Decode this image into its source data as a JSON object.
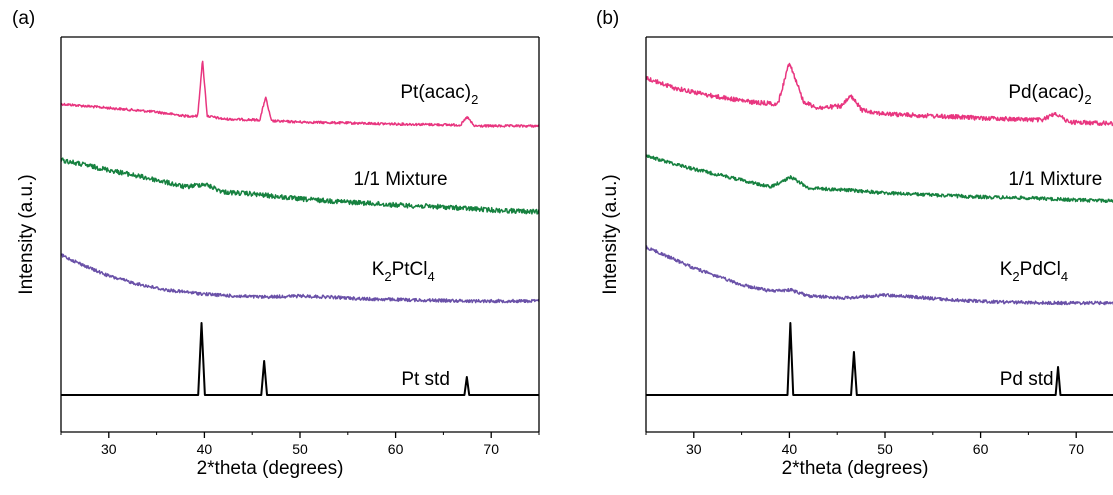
{
  "chart_data": [
    {
      "type": "line",
      "panel_label": "(a)",
      "xlabel": "2*theta (degrees)",
      "ylabel": "Intensity (a.u.)",
      "xlim": [
        25,
        75
      ],
      "xticks": [
        "30",
        "40",
        "50",
        "60",
        "70"
      ],
      "y_ticks_shown": false,
      "grid": false,
      "series": [
        {
          "name_parts": [
            {
              "t": "Pt(acac)"
            },
            {
              "t": "2",
              "sub": true
            }
          ],
          "color": "#e8357f",
          "noise": 1.2,
          "points": [
            [
              25,
              104
            ],
            [
              30,
              108
            ],
            [
              35,
              112
            ],
            [
              38,
              116
            ],
            [
              39.3,
              116
            ],
            [
              39.8,
              60
            ],
            [
              40.3,
              116
            ],
            [
              42,
              119
            ],
            [
              45.8,
              120
            ],
            [
              46.4,
              97
            ],
            [
              47,
              121
            ],
            [
              50,
              122
            ],
            [
              55,
              123
            ],
            [
              60,
              124
            ],
            [
              66.8,
              125
            ],
            [
              67.5,
              117
            ],
            [
              68.2,
              126
            ],
            [
              75,
              126
            ]
          ]
        },
        {
          "name_parts": [
            {
              "t": "1/1 Mixture"
            }
          ],
          "color": "#16813f",
          "noise": 2.4,
          "points": [
            [
              25,
              160
            ],
            [
              30,
              170
            ],
            [
              35,
              180
            ],
            [
              38,
              187
            ],
            [
              40,
              184
            ],
            [
              42,
              192
            ],
            [
              45,
              194
            ],
            [
              50,
              199
            ],
            [
              55,
              202
            ],
            [
              60,
              205
            ],
            [
              65,
              207
            ],
            [
              70,
              210
            ],
            [
              75,
              212
            ]
          ]
        },
        {
          "name_parts": [
            {
              "t": "K"
            },
            {
              "t": "2",
              "sub": true
            },
            {
              "t": "PtCl"
            },
            {
              "t": "4",
              "sub": true
            }
          ],
          "color": "#6a51a8",
          "noise": 1.6,
          "points": [
            [
              25,
              255
            ],
            [
              28,
              268
            ],
            [
              30,
              276
            ],
            [
              33,
              284
            ],
            [
              36,
              290
            ],
            [
              40,
              294
            ],
            [
              43,
              296
            ],
            [
              46,
              297
            ],
            [
              50,
              296
            ],
            [
              53,
              297
            ],
            [
              57,
              299
            ],
            [
              62,
              300
            ],
            [
              68,
              301
            ],
            [
              75,
              301
            ]
          ]
        },
        {
          "name_parts": [
            {
              "t": "Pt std"
            }
          ],
          "color": "#000000",
          "noise": 0,
          "points": [
            [
              25,
              395
            ],
            [
              39.35,
              395
            ],
            [
              39.7,
              323
            ],
            [
              40.05,
              395
            ],
            [
              45.95,
              395
            ],
            [
              46.25,
              361
            ],
            [
              46.55,
              395
            ],
            [
              67.2,
              395
            ],
            [
              67.45,
              377
            ],
            [
              67.7,
              395
            ],
            [
              75,
              395
            ]
          ]
        }
      ],
      "labels": [
        {
          "series": 0,
          "x": 60.5,
          "y": 98
        },
        {
          "series": 1,
          "x": 55.6,
          "y": 185
        },
        {
          "series": 2,
          "x": 57.5,
          "y": 275
        },
        {
          "series": 3,
          "x": 60.6,
          "y": 385
        }
      ]
    },
    {
      "type": "line",
      "panel_label": "(b)",
      "xlabel": "2*theta (degrees)",
      "ylabel": "Intensity (a.u.)",
      "xlim": [
        25,
        75
      ],
      "xticks": [
        "30",
        "40",
        "50",
        "60",
        "70"
      ],
      "y_ticks_shown": false,
      "grid": false,
      "series": [
        {
          "name_parts": [
            {
              "t": "Pd(acac)"
            },
            {
              "t": "2",
              "sub": true
            }
          ],
          "color": "#e8357f",
          "noise": 2.2,
          "points": [
            [
              25,
              78
            ],
            [
              28,
              88
            ],
            [
              32,
              96
            ],
            [
              36,
              102
            ],
            [
              38.8,
              104
            ],
            [
              40,
              62
            ],
            [
              41.5,
              102
            ],
            [
              43,
              108
            ],
            [
              45.5,
              106
            ],
            [
              46.4,
              96
            ],
            [
              47.6,
              110
            ],
            [
              50,
              114
            ],
            [
              55,
              116
            ],
            [
              60,
              118
            ],
            [
              66.5,
              120
            ],
            [
              67.8,
              113
            ],
            [
              69.2,
              122
            ],
            [
              75,
              124
            ]
          ]
        },
        {
          "name_parts": [
            {
              "t": "1/1 Mixture"
            }
          ],
          "color": "#16813f",
          "noise": 1.7,
          "points": [
            [
              25,
              156
            ],
            [
              30,
              169
            ],
            [
              35,
              180
            ],
            [
              38,
              187
            ],
            [
              40.2,
              177
            ],
            [
              42,
              188
            ],
            [
              46,
              190
            ],
            [
              50,
              193
            ],
            [
              55,
              195
            ],
            [
              60,
              197
            ],
            [
              65,
              198
            ],
            [
              70,
              200
            ],
            [
              75,
              201
            ]
          ]
        },
        {
          "name_parts": [
            {
              "t": "K"
            },
            {
              "t": "2",
              "sub": true
            },
            {
              "t": "PdCl"
            },
            {
              "t": "4",
              "sub": true
            }
          ],
          "color": "#6a51a8",
          "noise": 1.6,
          "points": [
            [
              25,
              247
            ],
            [
              30,
              268
            ],
            [
              35,
              285
            ],
            [
              38,
              291
            ],
            [
              40.2,
              290
            ],
            [
              42,
              296
            ],
            [
              46,
              298
            ],
            [
              50,
              295
            ],
            [
              53,
              297
            ],
            [
              57,
              300
            ],
            [
              62,
              302
            ],
            [
              68,
              303
            ],
            [
              75,
              303
            ]
          ]
        },
        {
          "name_parts": [
            {
              "t": "Pd std"
            }
          ],
          "color": "#000000",
          "noise": 0,
          "points": [
            [
              25,
              395
            ],
            [
              39.8,
              395
            ],
            [
              40.1,
              323
            ],
            [
              40.4,
              395
            ],
            [
              46.45,
              395
            ],
            [
              46.75,
              352
            ],
            [
              47.05,
              395
            ],
            [
              67.85,
              395
            ],
            [
              68.1,
              367
            ],
            [
              68.35,
              395
            ],
            [
              75,
              395
            ]
          ]
        }
      ],
      "labels": [
        {
          "series": 0,
          "x": 62.9,
          "y": 98
        },
        {
          "series": 1,
          "x": 62.9,
          "y": 185
        },
        {
          "series": 2,
          "x": 62.0,
          "y": 275
        },
        {
          "series": 3,
          "x": 62.0,
          "y": 385
        }
      ]
    }
  ]
}
